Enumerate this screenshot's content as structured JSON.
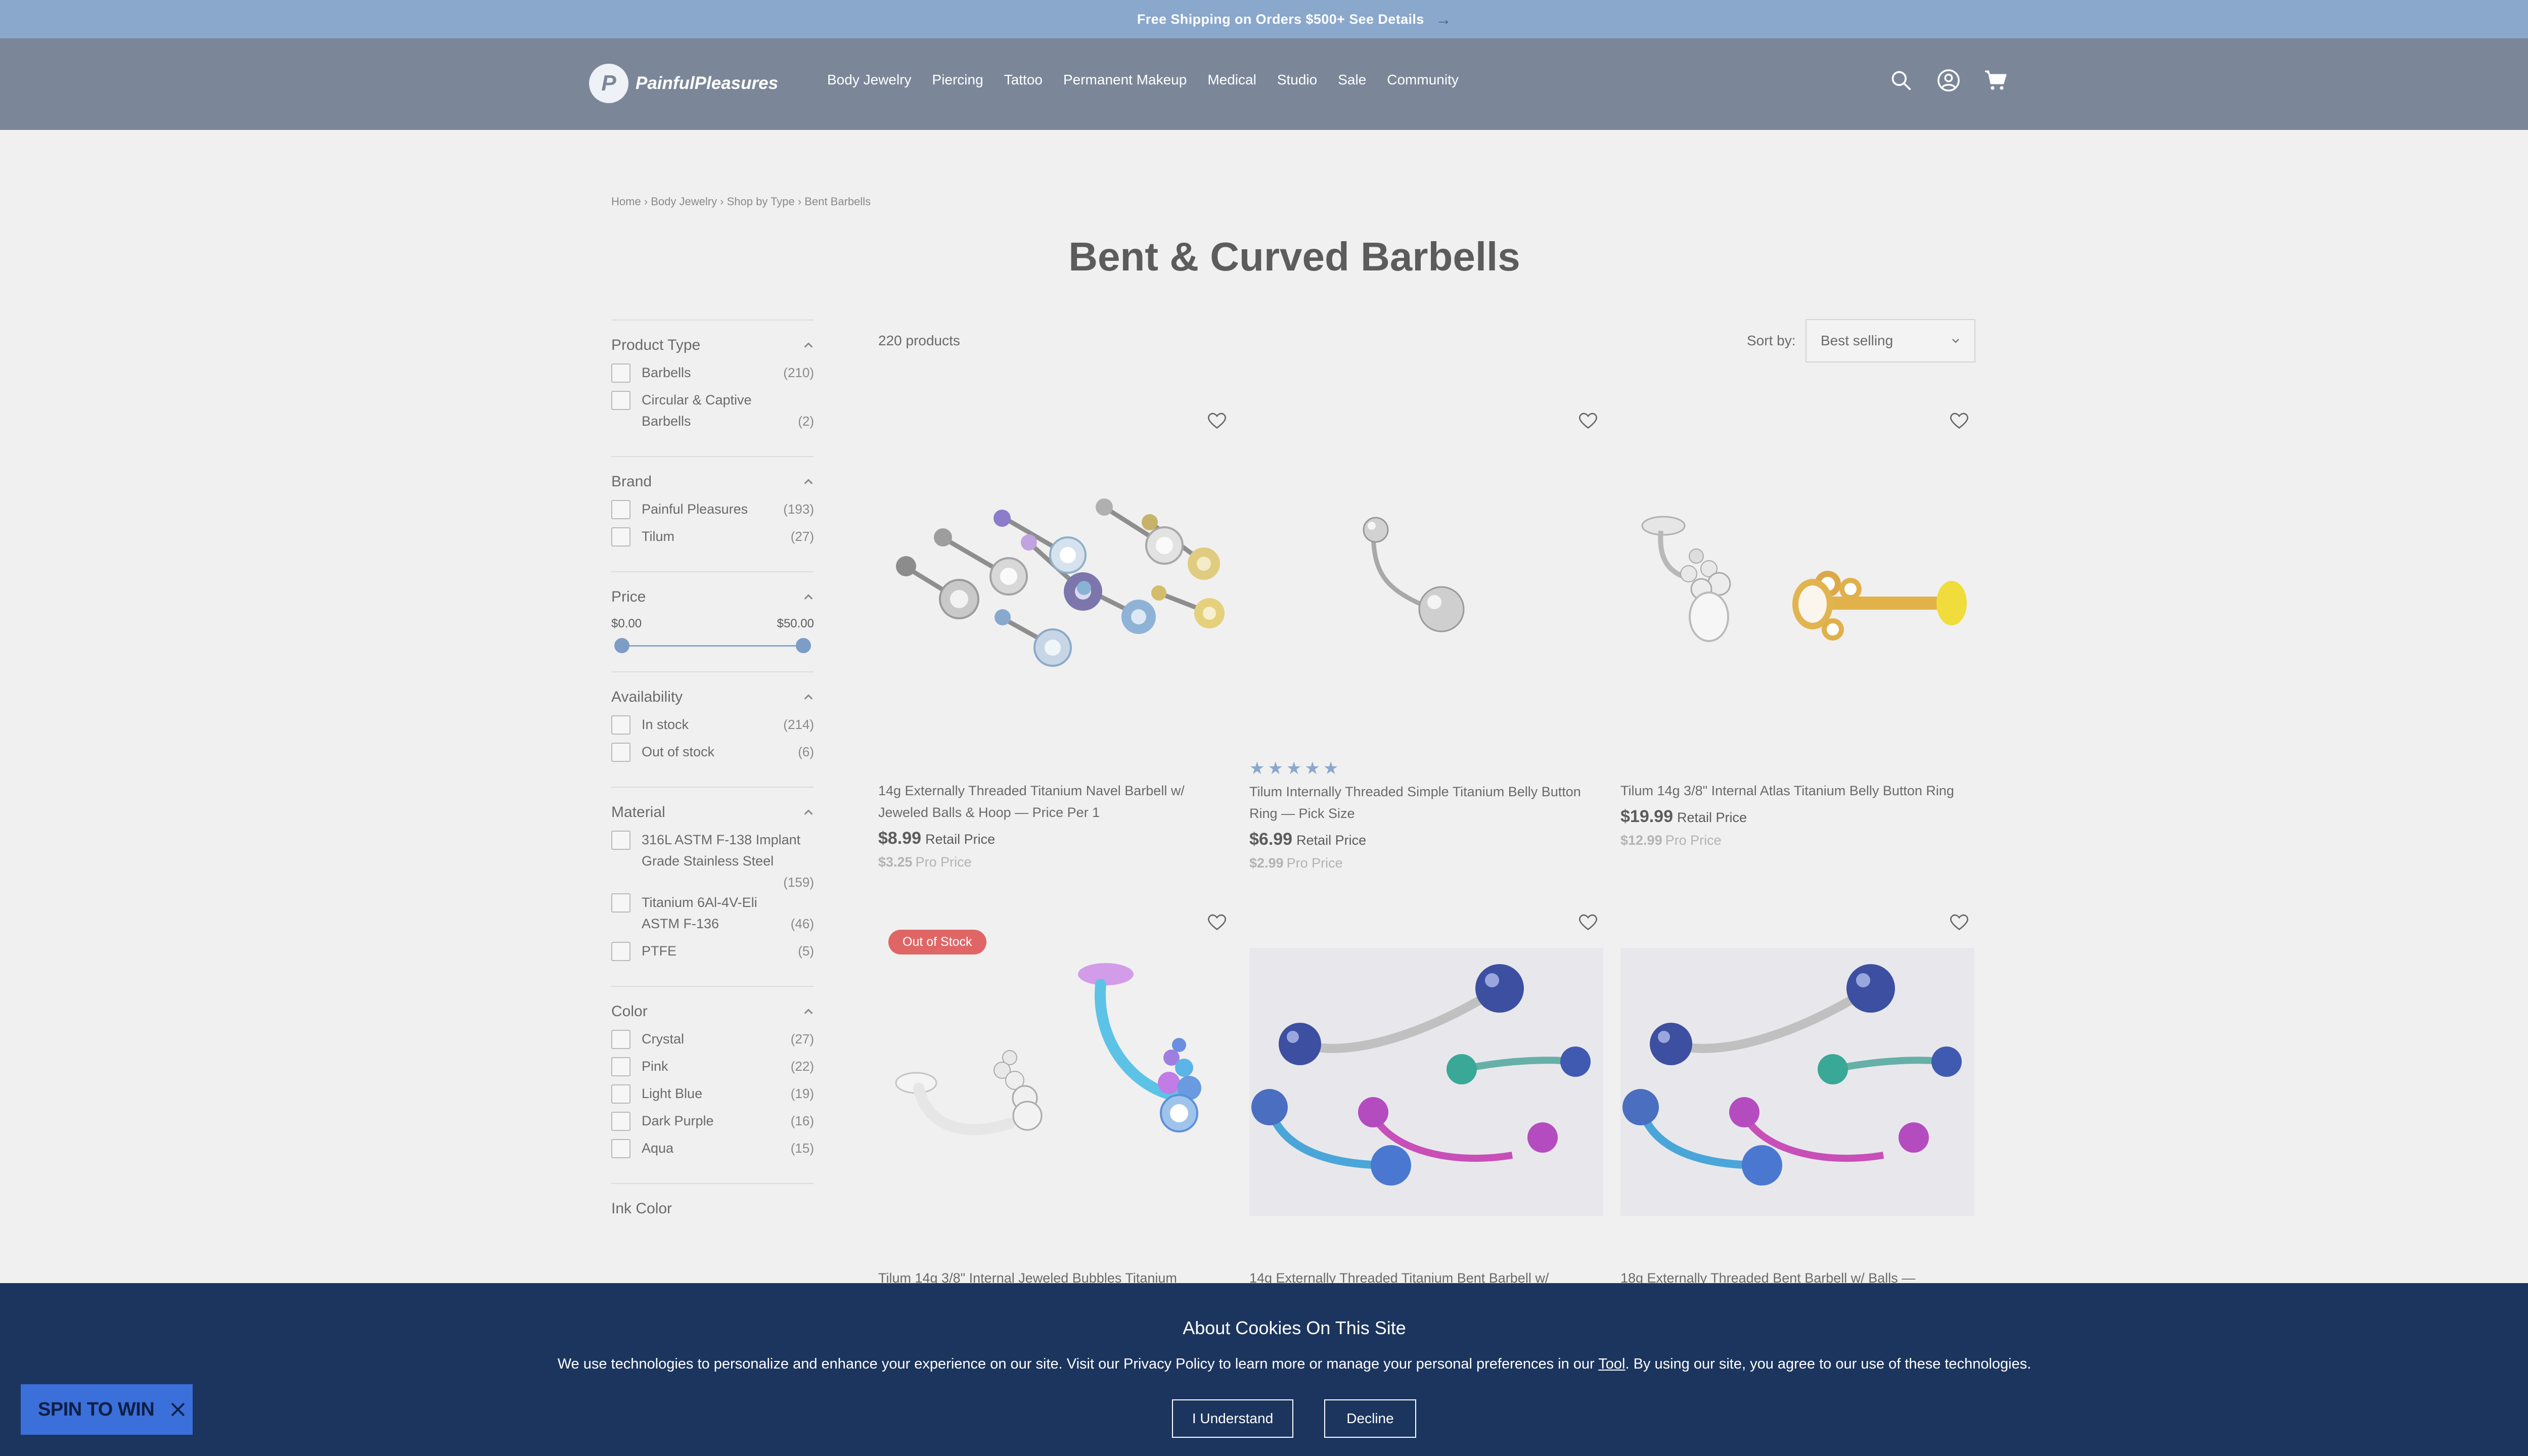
{
  "announcement": {
    "text": "Free Shipping on Orders $500+ See Details",
    "arrow": "→"
  },
  "header": {
    "logo_mark": "P",
    "logo_text": "PainfulPleasures",
    "nav": [
      "Body Jewelry",
      "Piercing",
      "Tattoo",
      "Permanent Makeup",
      "Medical",
      "Studio",
      "Sale",
      "Community"
    ],
    "icons": [
      "search-icon",
      "account-icon",
      "cart-icon"
    ]
  },
  "breadcrumb": "Home › Body Jewelry › Shop by Type › Bent Barbells",
  "page_title": "Bent & Curved Barbells",
  "toolbar": {
    "count": "220 products",
    "sort_label": "Sort by:",
    "sort_value": "Best selling"
  },
  "filters": {
    "product_type": {
      "title": "Product Type",
      "options": [
        {
          "label": "Barbells",
          "count": "(210)"
        },
        {
          "label": "Circular & Captive Barbells",
          "count": "(2)"
        }
      ]
    },
    "brand": {
      "title": "Brand",
      "options": [
        {
          "label": "Painful Pleasures",
          "count": "(193)"
        },
        {
          "label": "Tilum",
          "count": "(27)"
        }
      ]
    },
    "price": {
      "title": "Price",
      "min": "$0.00",
      "max": "$50.00"
    },
    "availability": {
      "title": "Availability",
      "options": [
        {
          "label": "In stock",
          "count": "(214)"
        },
        {
          "label": "Out of stock",
          "count": "(6)"
        }
      ]
    },
    "material": {
      "title": "Material",
      "options": [
        {
          "label": "316L ASTM F-138 Implant Grade Stainless Steel",
          "count": "(159)"
        },
        {
          "label": "Titanium 6Al-4V-Eli ASTM F-136",
          "count": "(46)"
        },
        {
          "label": "PTFE",
          "count": "(5)"
        }
      ]
    },
    "color": {
      "title": "Color",
      "options": [
        {
          "label": "Crystal",
          "count": "(27)"
        },
        {
          "label": "Pink",
          "count": "(22)"
        },
        {
          "label": "Light Blue",
          "count": "(19)"
        },
        {
          "label": "Dark Purple",
          "count": "(16)"
        },
        {
          "label": "Aqua",
          "count": "(15)"
        }
      ]
    },
    "next_facet": "Ink Color"
  },
  "products": [
    {
      "name": "14g Externally Threaded Titanium Navel Barbell w/ Jeweled Balls & Hoop — Price Per 1",
      "retail_price": "$8.99",
      "retail_label": "Retail Price",
      "pro_price": "$3.25",
      "pro_label": "Pro Price",
      "rating": 0
    },
    {
      "name": "Tilum Internally Threaded Simple Titanium Belly Button Ring — Pick Size",
      "retail_price": "$6.99",
      "retail_label": "Retail Price",
      "pro_price": "$2.99",
      "pro_label": "Pro Price",
      "rating": 5
    },
    {
      "name": "Tilum 14g 3/8\" Internal Atlas Titanium Belly Button Ring",
      "retail_price": "$19.99",
      "retail_label": "Retail Price",
      "pro_price": "$12.99",
      "pro_label": "Pro Price",
      "rating": 0
    },
    {
      "name": "Tilum 14g 3/8\" Internal Jeweled Bubbles Titanium",
      "badge": "Out of Stock"
    },
    {
      "name": "14g Externally Threaded Titanium Bent Barbell w/"
    },
    {
      "name": "18g Externally Threaded Bent Barbell w/ Balls —"
    }
  ],
  "cookie": {
    "title": "About Cookies On This Site",
    "text_before": "We use technologies to personalize and enhance your experience on our site. Visit our Privacy Policy to learn more or manage your personal preferences in our ",
    "tool_link": "Tool",
    "text_after": ". By using our site, you agree to our use of these technologies.",
    "accept": "I Understand",
    "decline": "Decline"
  },
  "spin": {
    "label": "SPIN TO WIN"
  },
  "colors": {
    "announcement_bg": "#8aa7cc",
    "header_bg": "#7b8799",
    "cookie_bg": "#1c355e",
    "accent": "#8aa7cc",
    "badge": "#e06666",
    "spin_bg": "#3b6fd9"
  }
}
